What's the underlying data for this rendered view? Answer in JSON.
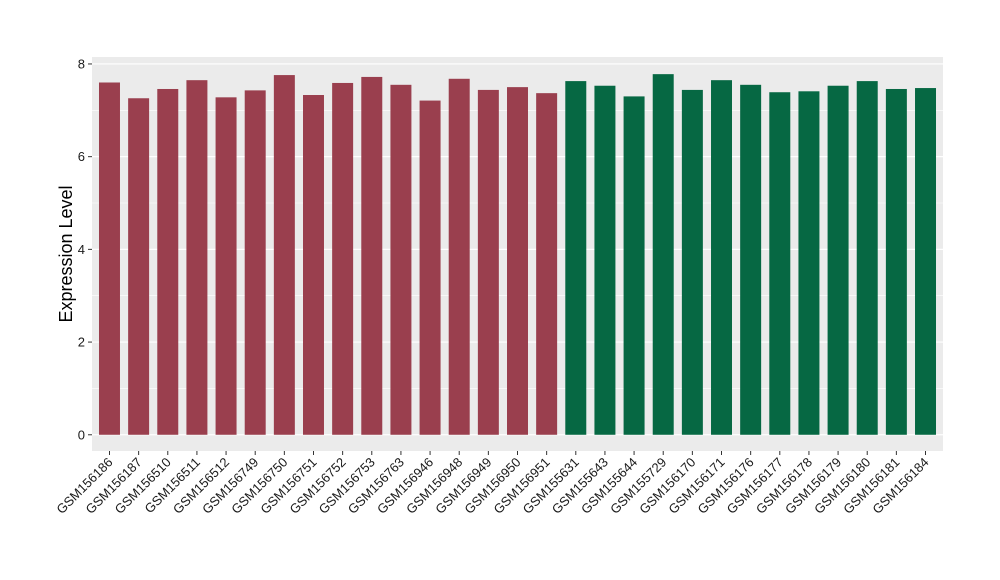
{
  "chart_data": {
    "type": "bar",
    "ylabel": "Expression Level",
    "xlabel": "",
    "ylim": [
      -0.35,
      8.15
    ],
    "y_ticks": [
      0,
      2,
      4,
      6,
      8
    ],
    "y_tick_labels": [
      "0",
      "2",
      "4",
      "6",
      "8"
    ],
    "grid": true,
    "legend": "none",
    "categories": [
      "GSM156186",
      "GSM156187",
      "GSM156510",
      "GSM156511",
      "GSM156512",
      "GSM156749",
      "GSM156750",
      "GSM156751",
      "GSM156752",
      "GSM156753",
      "GSM156763",
      "GSM156946",
      "GSM156948",
      "GSM156949",
      "GSM156950",
      "GSM156951",
      "GSM155631",
      "GSM155643",
      "GSM155644",
      "GSM155729",
      "GSM156170",
      "GSM156171",
      "GSM156176",
      "GSM156177",
      "GSM156178",
      "GSM156179",
      "GSM156180",
      "GSM156181",
      "GSM156184"
    ],
    "values": [
      7.6,
      7.26,
      7.46,
      7.65,
      7.28,
      7.43,
      7.76,
      7.33,
      7.59,
      7.72,
      7.55,
      7.21,
      7.68,
      7.44,
      7.5,
      7.37,
      7.63,
      7.53,
      7.3,
      7.78,
      7.44,
      7.65,
      7.55,
      7.39,
      7.41,
      7.53,
      7.63,
      7.46,
      7.48
    ],
    "group": [
      0,
      0,
      0,
      0,
      0,
      0,
      0,
      0,
      0,
      0,
      0,
      0,
      0,
      0,
      0,
      0,
      1,
      1,
      1,
      1,
      1,
      1,
      1,
      1,
      1,
      1,
      1,
      1,
      1
    ],
    "group_colors": [
      "#9a3f4e",
      "#066843"
    ],
    "panel_background": "#ebebeb",
    "gridline_color": "#ffffff"
  }
}
